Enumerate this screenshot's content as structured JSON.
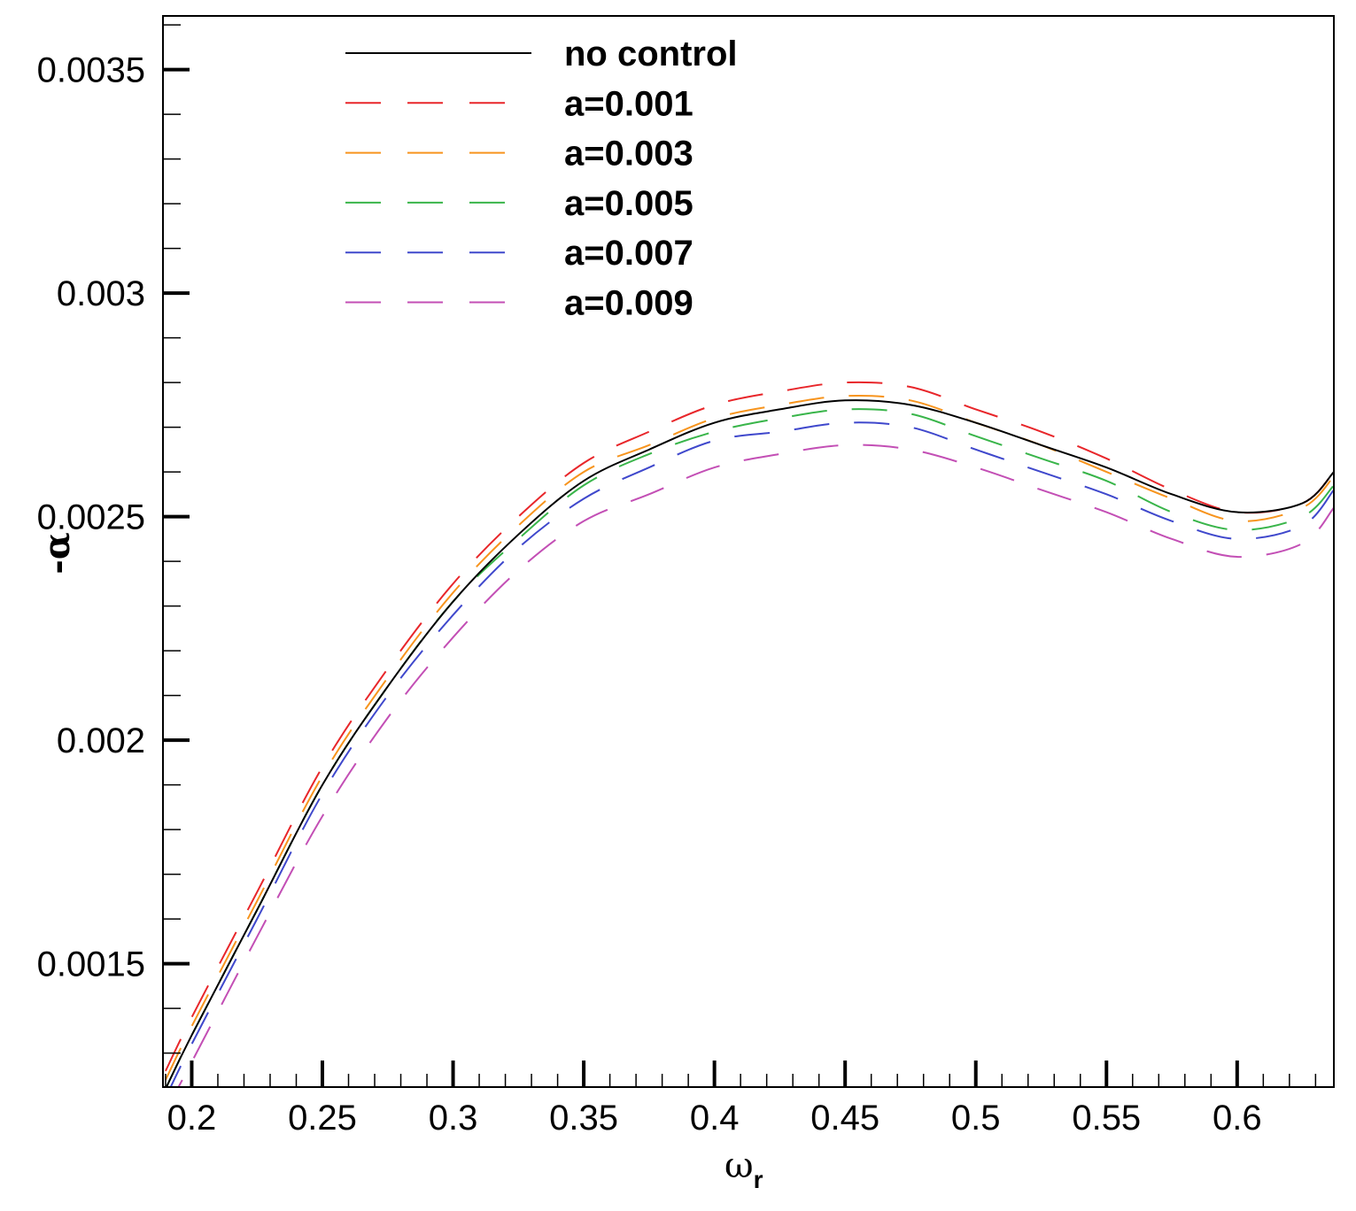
{
  "chart_data": {
    "type": "line",
    "title": "",
    "xlabel": "ω",
    "xlabel_sub": "r",
    "ylabel": "-α",
    "xlim": [
      0.189,
      0.637
    ],
    "ylim": [
      0.001224,
      0.00362
    ],
    "xticks": [
      "0.2",
      "0.25",
      "0.3",
      "0.35",
      "0.4",
      "0.45",
      "0.5",
      "0.55",
      "0.6"
    ],
    "yticks": [
      "0.0015",
      "0.002",
      "0.0025",
      "0.003",
      "0.0035"
    ],
    "grid": false,
    "legend_position": "top-center",
    "x": [
      0.19,
      0.2,
      0.225,
      0.25,
      0.275,
      0.3,
      0.325,
      0.35,
      0.375,
      0.4,
      0.425,
      0.45,
      0.475,
      0.5,
      0.525,
      0.55,
      0.575,
      0.6,
      0.625,
      0.637
    ],
    "series": [
      {
        "name": "no control",
        "color": "#000000",
        "dash": "solid",
        "values": [
          0.00122,
          0.00134,
          0.00162,
          0.0019,
          0.00212,
          0.00231,
          0.00246,
          0.00258,
          0.00265,
          0.00271,
          0.00274,
          0.00276,
          0.00275,
          0.00271,
          0.00266,
          0.00261,
          0.00255,
          0.00251,
          0.00253,
          0.0026
        ]
      },
      {
        "name": "a=0.001",
        "color": "#e8262a",
        "dash": "dashed",
        "values": [
          0.00126,
          0.00138,
          0.00166,
          0.00194,
          0.00216,
          0.00235,
          0.0025,
          0.00262,
          0.00269,
          0.00275,
          0.00278,
          0.0028,
          0.00279,
          0.00274,
          0.00269,
          0.00263,
          0.00256,
          0.00251,
          0.00253,
          0.0026
        ]
      },
      {
        "name": "a=0.003",
        "color": "#f7941d",
        "dash": "dashed",
        "values": [
          0.00124,
          0.00136,
          0.00164,
          0.00192,
          0.00214,
          0.00233,
          0.00248,
          0.0026,
          0.00266,
          0.00272,
          0.00275,
          0.00277,
          0.00276,
          0.00271,
          0.00266,
          0.0026,
          0.00254,
          0.00249,
          0.00252,
          0.00259
        ]
      },
      {
        "name": "a=0.005",
        "color": "#39b54a",
        "dash": "dashed",
        "values": [
          0.00122,
          0.00134,
          0.00162,
          0.0019,
          0.00212,
          0.00231,
          0.00245,
          0.00257,
          0.00264,
          0.00269,
          0.00272,
          0.00274,
          0.00273,
          0.00268,
          0.00263,
          0.00258,
          0.00251,
          0.00247,
          0.0025,
          0.00257
        ]
      },
      {
        "name": "a=0.007",
        "color": "#3f48cc",
        "dash": "dashed",
        "values": [
          0.0012,
          0.00132,
          0.0016,
          0.00188,
          0.0021,
          0.00228,
          0.00243,
          0.00254,
          0.00261,
          0.00267,
          0.00269,
          0.00271,
          0.0027,
          0.00265,
          0.0026,
          0.00255,
          0.00249,
          0.00245,
          0.00248,
          0.00256
        ]
      },
      {
        "name": "a=0.009",
        "color": "#c34fb5",
        "dash": "dashed",
        "values": [
          0.00117,
          0.00128,
          0.00156,
          0.00183,
          0.00205,
          0.00223,
          0.00238,
          0.00249,
          0.00255,
          0.00261,
          0.00264,
          0.00266,
          0.00265,
          0.00261,
          0.00256,
          0.00251,
          0.00245,
          0.00241,
          0.00244,
          0.00252
        ]
      }
    ]
  }
}
